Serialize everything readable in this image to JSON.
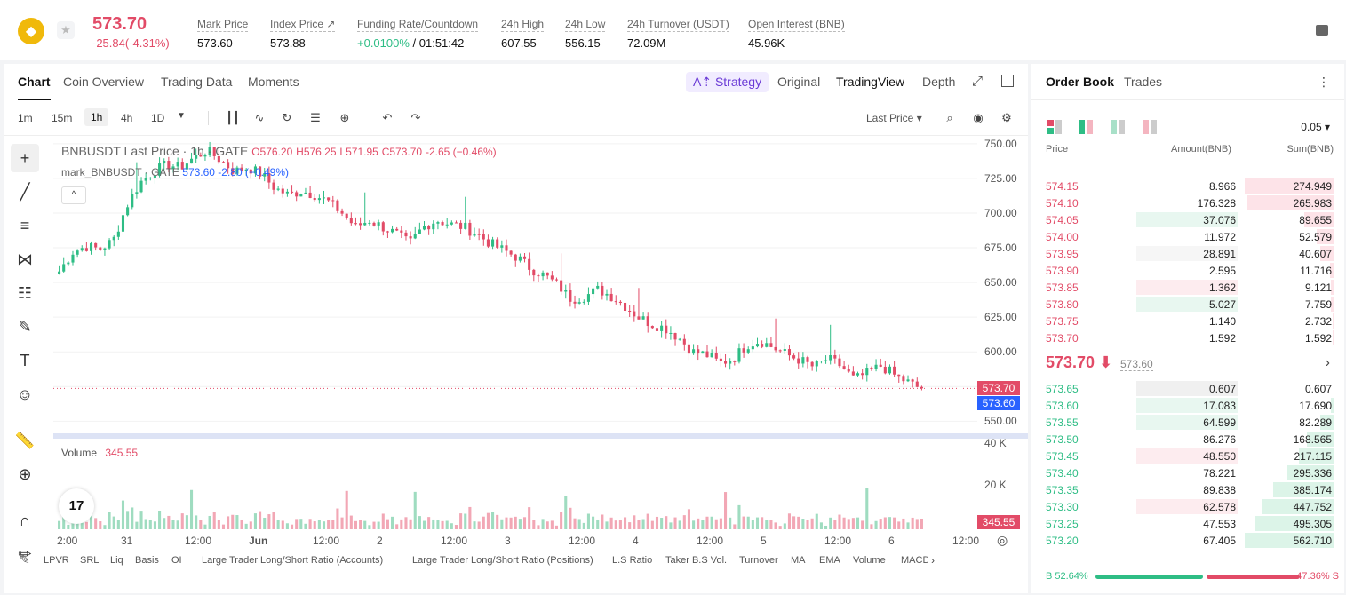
{
  "ticker": {
    "last_price": "573.70",
    "change": "-25.84(-4.31%)",
    "stats": [
      {
        "label": "Mark Price",
        "value": "573.60"
      },
      {
        "label": "Index Price ↗",
        "value": "573.88"
      },
      {
        "label": "Funding Rate/Countdown",
        "value_green": "+0.0100%",
        "value_rest": " / 01:51:42"
      },
      {
        "label": "24h High",
        "value": "607.55"
      },
      {
        "label": "24h Low",
        "value": "556.15"
      },
      {
        "label": "24h Turnover (USDT)",
        "value": "72.09M"
      },
      {
        "label": "Open Interest (BNB)",
        "value": "45.96K"
      }
    ]
  },
  "chart_tabs": [
    "Chart",
    "Coin Overview",
    "Trading Data",
    "Moments"
  ],
  "strategy_label": "A⇡ Strategy",
  "view_tabs": [
    "Original",
    "TradingView",
    "Depth"
  ],
  "intervals": [
    "1m",
    "15m",
    "1h",
    "4h",
    "1D"
  ],
  "price_source": "Last Price",
  "legend": {
    "main_prefix": "BNBUSDT Last Price · 1h · GATE",
    "o": "O576.20",
    "h": "H576.25",
    "l": "L571.95",
    "c": "C573.70",
    "chg": "-2.65 (−0.46%)",
    "mark_prefix": "mark_BNBUSDT · GATE",
    "mark_vals": "573.60  -2.80 (−0.49%)",
    "collapse": "^"
  },
  "volume_legend": {
    "label": "Volume",
    "value": "345.55"
  },
  "tv_logo": "17",
  "yaxis_ticks": [
    "750.00",
    "725.00",
    "700.00",
    "675.00",
    "650.00",
    "625.00",
    "600.00",
    "575.00",
    "550.00"
  ],
  "vol_ticks": [
    "40 K",
    "20 K"
  ],
  "price_tags": {
    "last": "573.70",
    "mark": "573.60",
    "volume": "345.55"
  },
  "xaxis_ticks": [
    "2:00",
    "31",
    "12:00",
    "Jun",
    "12:00",
    "2",
    "12:00",
    "3",
    "12:00",
    "4",
    "12:00",
    "5",
    "12:00",
    "6",
    "12:00"
  ],
  "indicators": [
    "LPVR",
    "SRL",
    "Liq",
    "Basis",
    "OI",
    "Large Trader Long/Short Ratio (Accounts)",
    "Large Trader Long/Short Ratio (Positions)",
    "L.S Ratio",
    "Taker B.S Vol.",
    "Turnover",
    "MA",
    "EMA",
    "Volume",
    "MACD"
  ],
  "colors": {
    "up": "#2ebd85",
    "down": "#e24b67",
    "mark": "#2962ff"
  },
  "chart_data": {
    "type": "candlestick",
    "title": "BNBUSDT Last Price · 1h · GATE",
    "ylim": [
      540,
      755
    ],
    "last_close": 573.7,
    "mark_price": 573.6,
    "path_close": [
      658,
      672,
      676,
      674,
      680,
      705,
      722,
      730,
      735,
      733,
      740,
      745,
      738,
      730,
      733,
      728,
      718,
      713,
      716,
      713,
      708,
      700,
      690,
      695,
      690,
      685,
      678,
      690,
      695,
      692,
      690,
      685,
      678,
      673,
      668,
      660,
      655,
      648,
      638,
      640,
      645,
      640,
      633,
      625,
      620,
      617,
      610,
      600,
      598,
      592,
      595,
      605,
      608,
      603,
      598,
      594,
      589,
      595,
      590,
      580,
      585,
      590,
      583,
      578,
      573
    ],
    "volume_scale_max": 40000
  },
  "orderbook": {
    "tabs": [
      "Order Book",
      "Trades"
    ],
    "precision": "0.05",
    "headers": [
      "Price",
      "Amount(BNB)",
      "Sum(BNB)"
    ],
    "asks": [
      {
        "price": "574.15",
        "amount": "8.966",
        "sum": "274.949",
        "af": 0.0,
        "sf": 1.0
      },
      {
        "price": "574.10",
        "amount": "176.328",
        "sum": "265.983",
        "af": 0.0,
        "sf": 0.97
      },
      {
        "price": "574.05",
        "amount": "37.076",
        "sum": "89.655",
        "af": 0.95,
        "sf": 0.33
      },
      {
        "price": "574.00",
        "amount": "11.972",
        "sum": "52.579",
        "af": 0.0,
        "sf": 0.19
      },
      {
        "price": "573.95",
        "amount": "28.891",
        "sum": "40.607",
        "af": 0.95,
        "sf": 0.15
      },
      {
        "price": "573.90",
        "amount": "2.595",
        "sum": "11.716",
        "af": 0.0,
        "sf": 0.04
      },
      {
        "price": "573.85",
        "amount": "1.362",
        "sum": "9.121",
        "af": 0.95,
        "sf": 0.03
      },
      {
        "price": "573.80",
        "amount": "5.027",
        "sum": "7.759",
        "af": 0.95,
        "sf": 0.03
      },
      {
        "price": "573.75",
        "amount": "1.140",
        "sum": "2.732",
        "af": 0.0,
        "sf": 0.01
      },
      {
        "price": "573.70",
        "amount": "1.592",
        "sum": "1.592",
        "af": 0.0,
        "sf": 0.01
      }
    ],
    "mid_price": "573.70 ⬇",
    "mid_mark": "573.60",
    "bids": [
      {
        "price": "573.65",
        "amount": "0.607",
        "sum": "0.607",
        "af": 0.95,
        "sf": 0.0
      },
      {
        "price": "573.60",
        "amount": "17.083",
        "sum": "17.690",
        "af": 0.95,
        "sf": 0.03
      },
      {
        "price": "573.55",
        "amount": "64.599",
        "sum": "82.289",
        "af": 0.95,
        "sf": 0.15
      },
      {
        "price": "573.50",
        "amount": "86.276",
        "sum": "168.565",
        "af": 0.0,
        "sf": 0.3
      },
      {
        "price": "573.45",
        "amount": "48.550",
        "sum": "217.115",
        "af": 0.95,
        "sf": 0.39
      },
      {
        "price": "573.40",
        "amount": "78.221",
        "sum": "295.336",
        "af": 0.0,
        "sf": 0.52
      },
      {
        "price": "573.35",
        "amount": "89.838",
        "sum": "385.174",
        "af": 0.0,
        "sf": 0.68
      },
      {
        "price": "573.30",
        "amount": "62.578",
        "sum": "447.752",
        "af": 0.95,
        "sf": 0.8
      },
      {
        "price": "573.25",
        "amount": "47.553",
        "sum": "495.305",
        "af": 0.0,
        "sf": 0.88
      },
      {
        "price": "573.20",
        "amount": "67.405",
        "sum": "562.710",
        "af": 0.0,
        "sf": 1.0
      }
    ],
    "buy_ratio": "B 52.64%",
    "sell_ratio": "47.36% S",
    "buy_frac": 0.5264
  }
}
